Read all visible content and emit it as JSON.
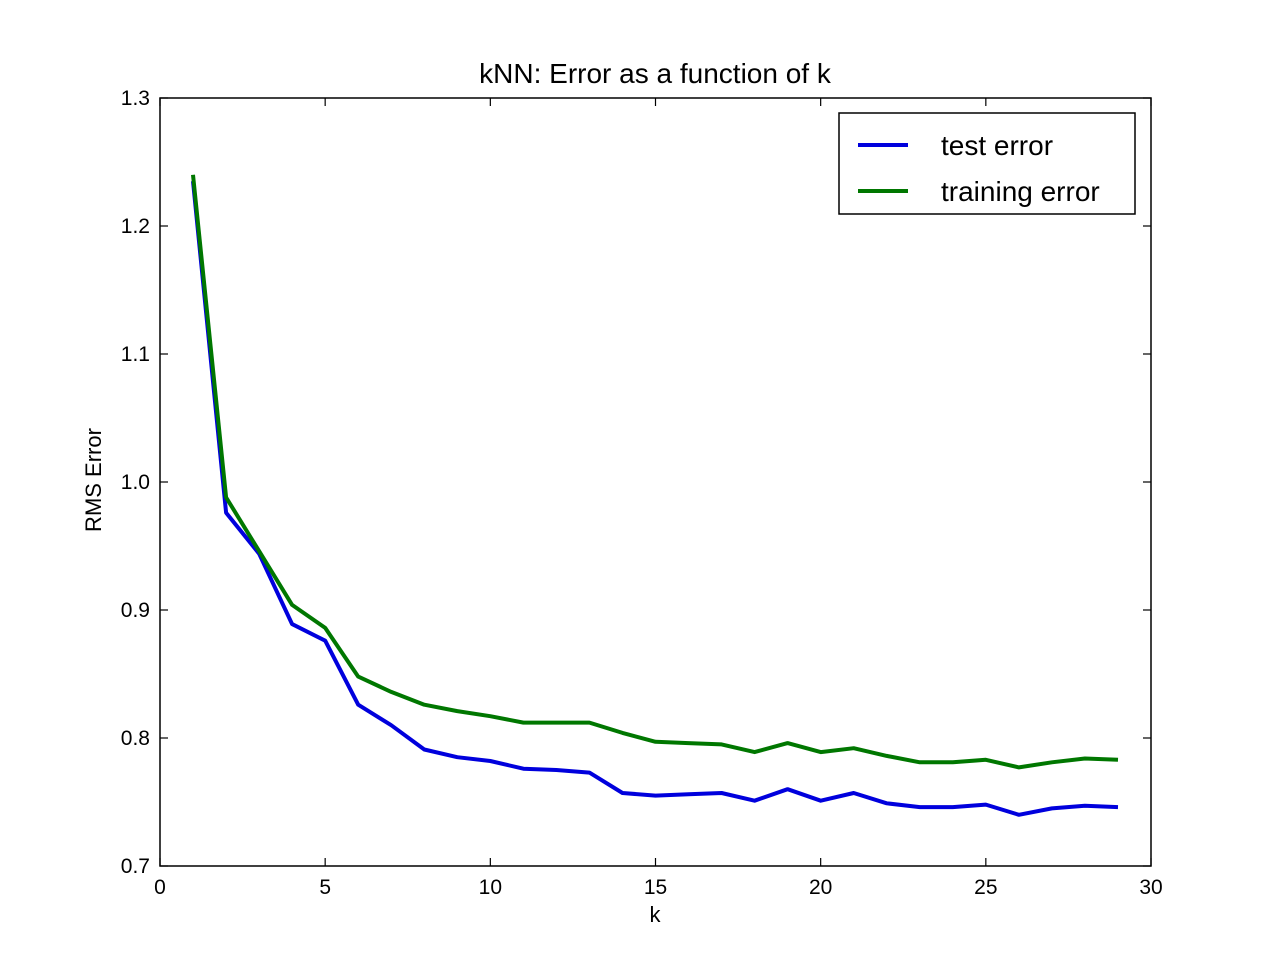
{
  "chart_data": {
    "type": "line",
    "title": "kNN: Error as a function of k",
    "xlabel": "k",
    "ylabel": "RMS Error",
    "xlim": [
      0,
      30
    ],
    "ylim": [
      0.7,
      1.3
    ],
    "xticks": [
      0,
      5,
      10,
      15,
      20,
      25,
      30
    ],
    "yticks": [
      0.7,
      0.8,
      0.9,
      1.0,
      1.1,
      1.2,
      1.3
    ],
    "xtick_labels": [
      "0",
      "5",
      "10",
      "15",
      "20",
      "25",
      "30"
    ],
    "ytick_labels": [
      "0.7",
      "0.8",
      "0.9",
      "1.0",
      "1.1",
      "1.2",
      "1.3"
    ],
    "grid": false,
    "legend_position": "top-right",
    "x": [
      1,
      2,
      3,
      4,
      5,
      6,
      7,
      8,
      9,
      10,
      11,
      12,
      13,
      14,
      15,
      16,
      17,
      18,
      19,
      20,
      21,
      22,
      23,
      24,
      25,
      26,
      27,
      28,
      29
    ],
    "series": [
      {
        "name": "test error",
        "color": "#0000dd",
        "values": [
          1.235,
          0.976,
          0.944,
          0.889,
          0.876,
          0.826,
          0.81,
          0.791,
          0.785,
          0.782,
          0.776,
          0.775,
          0.773,
          0.757,
          0.755,
          0.756,
          0.757,
          0.751,
          0.76,
          0.751,
          0.757,
          0.749,
          0.746,
          0.746,
          0.748,
          0.74,
          0.745,
          0.747,
          0.746
        ]
      },
      {
        "name": "training error",
        "color": "#007700",
        "values": [
          1.24,
          0.988,
          0.946,
          0.904,
          0.886,
          0.848,
          0.836,
          0.826,
          0.821,
          0.817,
          0.812,
          0.812,
          0.812,
          0.804,
          0.797,
          0.796,
          0.795,
          0.789,
          0.796,
          0.789,
          0.792,
          0.786,
          0.781,
          0.781,
          0.783,
          0.777,
          0.781,
          0.784,
          0.783
        ]
      }
    ]
  }
}
